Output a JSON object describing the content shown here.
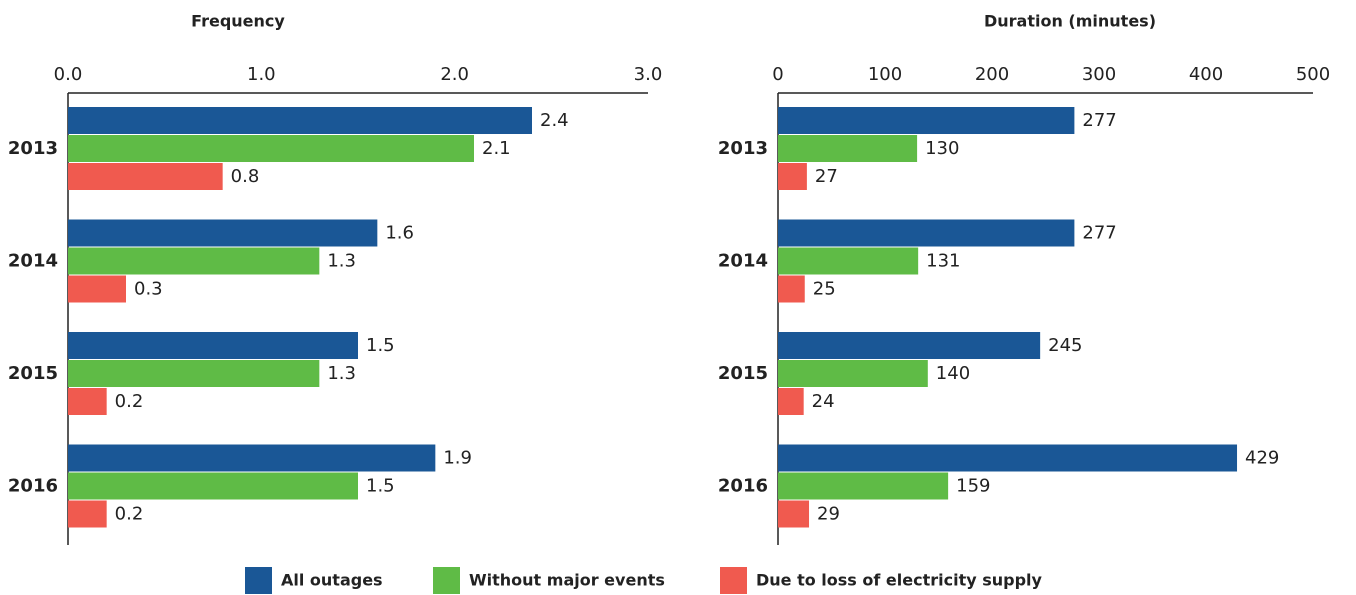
{
  "chart_data": [
    {
      "type": "bar",
      "orientation": "horizontal",
      "title": "Frequency",
      "categories": [
        "2013",
        "2014",
        "2015",
        "2016"
      ],
      "series": [
        {
          "name": "All outages",
          "color": "#1a5796",
          "values": [
            2.4,
            1.6,
            1.5,
            1.9
          ]
        },
        {
          "name": "Without major events",
          "color": "#5fbb46",
          "values": [
            2.1,
            1.3,
            1.3,
            1.5
          ]
        },
        {
          "name": "Due to loss of electricity supply",
          "color": "#f05a4f",
          "values": [
            0.8,
            0.3,
            0.2,
            0.2
          ]
        }
      ],
      "xlim": [
        0,
        3
      ],
      "xticks": [
        {
          "value": 0,
          "label": "0.0"
        },
        {
          "value": 1,
          "label": "1.0"
        },
        {
          "value": 2,
          "label": "2.0"
        },
        {
          "value": 3,
          "label": "3.0"
        }
      ]
    },
    {
      "type": "bar",
      "orientation": "horizontal",
      "title": "Duration (minutes)",
      "categories": [
        "2013",
        "2014",
        "2015",
        "2016"
      ],
      "series": [
        {
          "color": "#1a5796",
          "values": [
            277,
            277,
            245,
            429
          ]
        },
        {
          "color": "#5fbb46",
          "values": [
            130,
            131,
            140,
            159
          ]
        },
        {
          "color": "#f05a4f",
          "values": [
            27,
            25,
            24,
            29
          ]
        }
      ],
      "xlim": [
        0,
        500
      ],
      "xticks": [
        0,
        100,
        200,
        300,
        400,
        500
      ]
    }
  ]
}
